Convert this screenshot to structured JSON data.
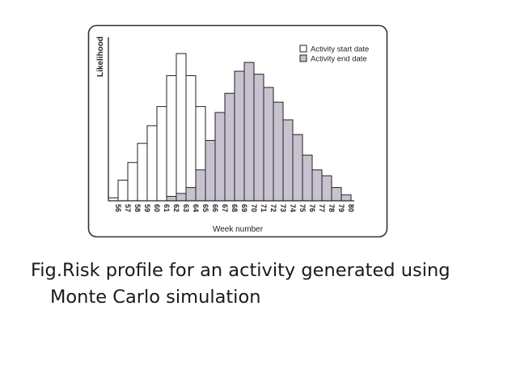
{
  "chart_data": {
    "type": "bar",
    "title": "",
    "xlabel": "Week number",
    "ylabel": "Likelihood",
    "categories": [
      "56",
      "57",
      "58",
      "59",
      "60",
      "61",
      "62",
      "63",
      "64",
      "65",
      "66",
      "67",
      "68",
      "69",
      "70",
      "71",
      "72",
      "73",
      "74",
      "75",
      "76",
      "77",
      "78",
      "79",
      "80"
    ],
    "series": [
      {
        "name": "Activity start date",
        "values": [
          2,
          14,
          26,
          39,
          51,
          64,
          85,
          100,
          85,
          64,
          0,
          0,
          0,
          0,
          0,
          0,
          0,
          0,
          0,
          0,
          0,
          0,
          0,
          0,
          0
        ]
      },
      {
        "name": "Activity end date",
        "values": [
          0,
          0,
          0,
          0,
          0,
          0,
          3,
          5,
          9,
          21,
          41,
          60,
          73,
          88,
          94,
          86,
          77,
          67,
          55,
          45,
          31,
          21,
          17,
          9,
          4
        ]
      }
    ],
    "ylim": [
      0,
      110
    ],
    "grid": false,
    "legend": "top-right"
  },
  "colors": {
    "start_fill": "#ffffff",
    "end_fill": "#c8c2d0",
    "stroke": "#222222"
  },
  "caption": {
    "line1": "Fig.Risk profile for an activity generated using",
    "line2": "Monte Carlo simulation"
  }
}
